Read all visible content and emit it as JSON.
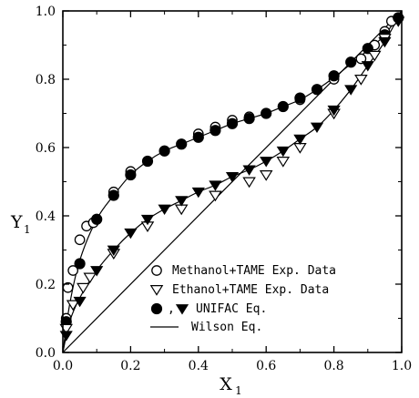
{
  "chart_data": {
    "type": "scatter",
    "xlabel": {
      "main": "X",
      "sub": "1"
    },
    "ylabel": {
      "main": "Y",
      "sub": "1"
    },
    "xlim": [
      0,
      1
    ],
    "ylim": [
      0,
      1
    ],
    "xticks": [
      "0.0",
      "0.2",
      "0.4",
      "0.6",
      "0.8",
      "1.0"
    ],
    "yticks": [
      "0.0",
      "0.2",
      "0.4",
      "0.6",
      "0.8",
      "1.0"
    ],
    "grid": false,
    "legend_position": "bottom-right",
    "legend": [
      {
        "marker": "open-circle",
        "label": "Methanol+TAME Exp. Data"
      },
      {
        "marker": "open-triangle-down",
        "label": "Ethanol+TAME Exp. Data"
      },
      {
        "marker": "filled-circle+filled-triangle-down",
        "prefix": ",",
        "label": "UNIFAC Eq."
      },
      {
        "marker": "line",
        "label": "Wilson Eq."
      }
    ],
    "series": [
      {
        "name": "Methanol+TAME Exp. Data",
        "marker": "open-circle",
        "x": [
          0.01,
          0.015,
          0.03,
          0.05,
          0.07,
          0.09,
          0.15,
          0.2,
          0.3,
          0.4,
          0.45,
          0.5,
          0.55,
          0.6,
          0.65,
          0.7,
          0.8,
          0.88,
          0.92,
          0.95,
          0.97
        ],
        "y": [
          0.1,
          0.19,
          0.24,
          0.33,
          0.37,
          0.38,
          0.47,
          0.53,
          0.59,
          0.64,
          0.66,
          0.68,
          0.69,
          0.7,
          0.72,
          0.74,
          0.8,
          0.86,
          0.9,
          0.94,
          0.97
        ]
      },
      {
        "name": "UNIFAC Eq. (Methanol+TAME)",
        "marker": "filled-circle",
        "x": [
          0.01,
          0.05,
          0.1,
          0.15,
          0.2,
          0.25,
          0.3,
          0.35,
          0.4,
          0.45,
          0.5,
          0.55,
          0.6,
          0.65,
          0.7,
          0.75,
          0.8,
          0.85,
          0.9,
          0.95,
          0.99
        ],
        "y": [
          0.09,
          0.26,
          0.39,
          0.46,
          0.52,
          0.56,
          0.59,
          0.61,
          0.63,
          0.65,
          0.67,
          0.685,
          0.7,
          0.72,
          0.745,
          0.77,
          0.81,
          0.85,
          0.89,
          0.93,
          0.98
        ]
      },
      {
        "name": "Ethanol+TAME Exp. Data",
        "marker": "open-triangle-down",
        "x": [
          0.01,
          0.03,
          0.06,
          0.08,
          0.15,
          0.25,
          0.35,
          0.45,
          0.55,
          0.6,
          0.65,
          0.7,
          0.8,
          0.88,
          0.92,
          0.95
        ],
        "y": [
          0.07,
          0.14,
          0.19,
          0.22,
          0.29,
          0.37,
          0.42,
          0.46,
          0.5,
          0.52,
          0.56,
          0.6,
          0.7,
          0.8,
          0.87,
          0.92
        ]
      },
      {
        "name": "UNIFAC Eq. (Ethanol+TAME)",
        "marker": "filled-triangle-down",
        "x": [
          0.01,
          0.05,
          0.1,
          0.15,
          0.2,
          0.25,
          0.3,
          0.35,
          0.4,
          0.45,
          0.5,
          0.55,
          0.6,
          0.65,
          0.7,
          0.75,
          0.8,
          0.85,
          0.9,
          0.95,
          0.99
        ],
        "y": [
          0.05,
          0.15,
          0.24,
          0.3,
          0.35,
          0.39,
          0.42,
          0.445,
          0.47,
          0.49,
          0.515,
          0.535,
          0.56,
          0.59,
          0.625,
          0.66,
          0.71,
          0.77,
          0.84,
          0.91,
          0.97
        ]
      }
    ],
    "lines": [
      {
        "name": "Wilson Eq. (Methanol+TAME)",
        "x": [
          0,
          0.02,
          0.05,
          0.1,
          0.15,
          0.2,
          0.25,
          0.3,
          0.35,
          0.4,
          0.45,
          0.5,
          0.55,
          0.6,
          0.65,
          0.7,
          0.75,
          0.8,
          0.85,
          0.9,
          0.95,
          1.0
        ],
        "y": [
          0,
          0.14,
          0.27,
          0.39,
          0.46,
          0.52,
          0.56,
          0.59,
          0.61,
          0.63,
          0.65,
          0.67,
          0.685,
          0.7,
          0.72,
          0.74,
          0.77,
          0.805,
          0.845,
          0.885,
          0.93,
          1.0
        ]
      },
      {
        "name": "Wilson Eq. (Ethanol+TAME)",
        "x": [
          0,
          0.02,
          0.05,
          0.1,
          0.15,
          0.2,
          0.25,
          0.3,
          0.35,
          0.4,
          0.45,
          0.5,
          0.55,
          0.6,
          0.65,
          0.7,
          0.75,
          0.8,
          0.85,
          0.9,
          0.95,
          1.0
        ],
        "y": [
          0,
          0.09,
          0.16,
          0.24,
          0.3,
          0.35,
          0.39,
          0.42,
          0.445,
          0.47,
          0.49,
          0.515,
          0.535,
          0.56,
          0.59,
          0.625,
          0.66,
          0.71,
          0.77,
          0.84,
          0.91,
          1.0
        ]
      },
      {
        "name": "y=x diagonal",
        "x": [
          0,
          1
        ],
        "y": [
          0,
          1
        ]
      }
    ]
  }
}
